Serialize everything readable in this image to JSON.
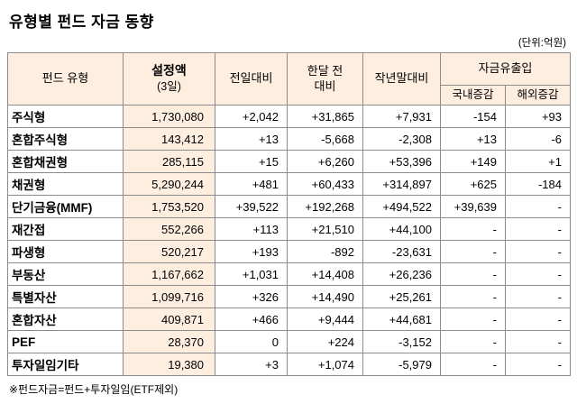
{
  "title": "유형별 펀드 자금 동향",
  "unit_note": "(단위:억원)",
  "footnote": "※펀드자금=펀드+투자일임(ETF제외)",
  "colors": {
    "header_bg": "#fdeee0",
    "border": "#8c8c8c",
    "text": "#000000"
  },
  "chart_data": {
    "type": "table",
    "title": "유형별 펀드 자금 동향",
    "unit_label": "(단위:억원)",
    "header": {
      "fund_type": "펀드 유형",
      "amount_line1": "설정액",
      "amount_line2": "(3일)",
      "day_change": "전일대비",
      "month_change_line1": "한달 전",
      "month_change_line2": "대비",
      "ytd_change": "작년말대비",
      "flow_group": "자금유출입",
      "flow_domestic": "국내증감",
      "flow_overseas": "해외증감"
    },
    "rows": [
      {
        "type": "주식형",
        "amount": "1,730,080",
        "day_change": "+2,042",
        "month_change": "+31,865",
        "ytd_change": "+7,931",
        "flow_domestic": "-154",
        "flow_overseas": "+93"
      },
      {
        "type": "혼합주식형",
        "amount": "143,412",
        "day_change": "+13",
        "month_change": "-5,668",
        "ytd_change": "-2,308",
        "flow_domestic": "+13",
        "flow_overseas": "-6"
      },
      {
        "type": "혼합채권형",
        "amount": "285,115",
        "day_change": "+15",
        "month_change": "+6,260",
        "ytd_change": "+53,396",
        "flow_domestic": "+149",
        "flow_overseas": "+1"
      },
      {
        "type": "채권형",
        "amount": "5,290,244",
        "day_change": "+481",
        "month_change": "+60,433",
        "ytd_change": "+314,897",
        "flow_domestic": "+625",
        "flow_overseas": "-184"
      },
      {
        "type": "단기금융(MMF)",
        "amount": "1,753,520",
        "day_change": "+39,522",
        "month_change": "+192,268",
        "ytd_change": "+494,522",
        "flow_domestic": "+39,639",
        "flow_overseas": "-"
      },
      {
        "type": "재간접",
        "amount": "552,266",
        "day_change": "+113",
        "month_change": "+21,510",
        "ytd_change": "+44,100",
        "flow_domestic": "-",
        "flow_overseas": "-"
      },
      {
        "type": "파생형",
        "amount": "520,217",
        "day_change": "+193",
        "month_change": "-892",
        "ytd_change": "-23,631",
        "flow_domestic": "-",
        "flow_overseas": "-"
      },
      {
        "type": "부동산",
        "amount": "1,167,662",
        "day_change": "+1,031",
        "month_change": "+14,408",
        "ytd_change": "+26,236",
        "flow_domestic": "-",
        "flow_overseas": "-"
      },
      {
        "type": "특별자산",
        "amount": "1,099,716",
        "day_change": "+326",
        "month_change": "+14,490",
        "ytd_change": "+25,261",
        "flow_domestic": "-",
        "flow_overseas": "-"
      },
      {
        "type": "혼합자산",
        "amount": "409,871",
        "day_change": "+466",
        "month_change": "+9,444",
        "ytd_change": "+44,681",
        "flow_domestic": "-",
        "flow_overseas": "-"
      },
      {
        "type": "PEF",
        "amount": "28,370",
        "day_change": "0",
        "month_change": "+224",
        "ytd_change": "-3,152",
        "flow_domestic": "-",
        "flow_overseas": "-"
      },
      {
        "type": "투자일임기타",
        "amount": "19,380",
        "day_change": "+3",
        "month_change": "+1,074",
        "ytd_change": "-5,979",
        "flow_domestic": "-",
        "flow_overseas": "-"
      }
    ]
  }
}
